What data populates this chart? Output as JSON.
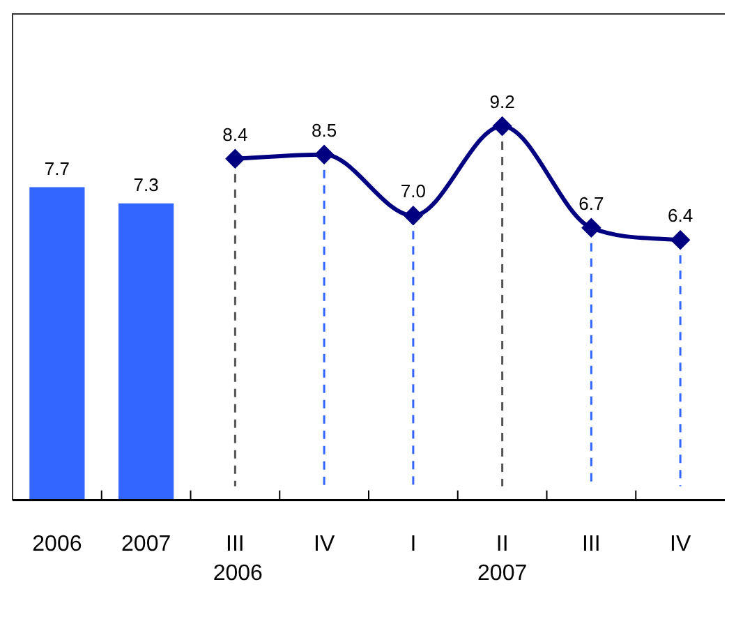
{
  "chart_data": {
    "type": "bar",
    "categories": [
      "2006",
      "2007",
      "III",
      "IV",
      "I",
      "II",
      "III",
      "IV"
    ],
    "series": [
      {
        "color": "#3366ff",
        "values": [
          7.7,
          7.3,
          null,
          null,
          null,
          null,
          null,
          null
        ],
        "value_labels": [
          "7.7",
          "7.3",
          null,
          null,
          null,
          null,
          null,
          null
        ]
      },
      {
        "type": "line",
        "color": "#000080",
        "marker": "diamond",
        "values": [
          null,
          null,
          8.4,
          8.5,
          7.0,
          9.2,
          6.7,
          6.4
        ],
        "value_labels": [
          null,
          null,
          "8.4",
          "8.5",
          "7.0",
          "9.2",
          "6.7",
          "6.4"
        ]
      }
    ],
    "annotations": [
      "2006",
      "2007"
    ],
    "grid": "x",
    "legend": false
  }
}
